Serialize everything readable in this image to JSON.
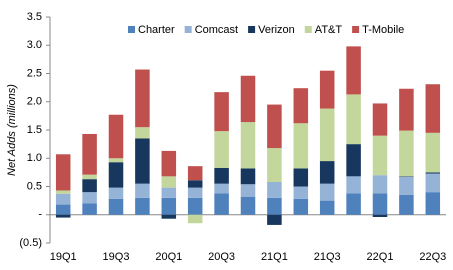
{
  "chart_data": {
    "type": "stacked_bar",
    "y_label": "Net Adds (millions)",
    "categories": [
      "19Q1",
      null,
      "19Q3",
      null,
      "20Q1",
      null,
      "20Q3",
      null,
      "21Q1",
      null,
      "21Q3",
      null,
      "22Q1",
      null,
      "22Q3"
    ],
    "series": [
      {
        "name": "Charter",
        "color": "#4f81bd",
        "values": [
          0.18,
          0.2,
          0.28,
          0.3,
          0.3,
          0.3,
          0.38,
          0.32,
          0.3,
          0.28,
          0.25,
          0.38,
          0.38,
          0.35,
          0.4
        ]
      },
      {
        "name": "Comcast",
        "color": "#95b3d7",
        "values": [
          0.19,
          0.2,
          0.2,
          0.25,
          0.18,
          0.18,
          0.17,
          0.22,
          0.28,
          0.22,
          0.3,
          0.3,
          0.32,
          0.32,
          0.33
        ]
      },
      {
        "name": "Verizon",
        "color": "#17375e",
        "values": [
          -0.05,
          0.23,
          0.45,
          0.8,
          -0.07,
          0.13,
          0.28,
          0.28,
          -0.18,
          0.32,
          0.4,
          0.57,
          -0.04,
          0.01,
          0.02
        ]
      },
      {
        "name": "AT&T",
        "color": "#c3d69b",
        "values": [
          0.06,
          0.08,
          0.07,
          0.2,
          0.2,
          -0.15,
          0.65,
          0.82,
          0.6,
          0.8,
          0.93,
          0.88,
          0.7,
          0.81,
          0.7
        ]
      },
      {
        "name": "T-Mobile",
        "color": "#c0504d",
        "values": [
          0.64,
          0.72,
          0.77,
          1.02,
          0.45,
          0.25,
          0.69,
          0.82,
          0.77,
          0.62,
          0.67,
          0.85,
          0.57,
          0.74,
          0.86
        ]
      }
    ],
    "ylim": [
      -0.5,
      3.5
    ],
    "yticks": [
      {
        "value": -0.5,
        "label": "(0.5)"
      },
      {
        "value": 0,
        "label": "-"
      },
      0.5,
      {
        "value": 1,
        "label": "1.0"
      },
      1.5,
      {
        "value": 2,
        "label": "2.0"
      },
      2.5,
      {
        "value": 3,
        "label": "3.0"
      },
      3.5
    ],
    "legend": "top"
  }
}
